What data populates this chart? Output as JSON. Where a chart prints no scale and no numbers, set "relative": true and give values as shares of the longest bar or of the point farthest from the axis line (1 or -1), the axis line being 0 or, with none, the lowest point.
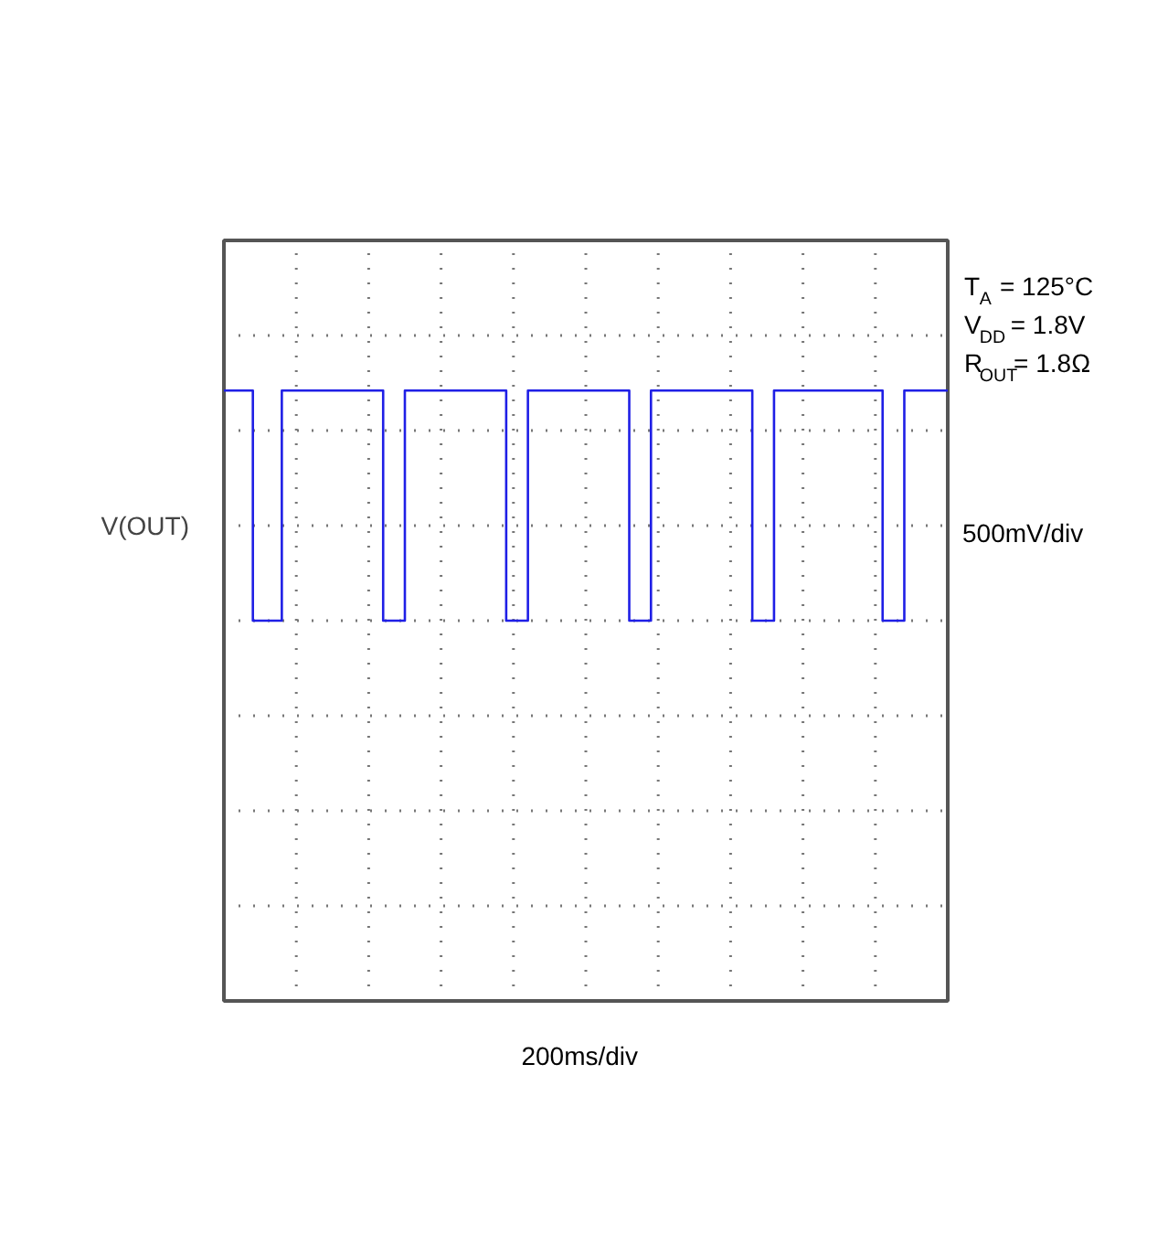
{
  "chart_data": {
    "type": "step",
    "relative": true,
    "ylabel": "V(OUT)",
    "grid": true,
    "categories": [
      null,
      null,
      null,
      null,
      null,
      null,
      null,
      null,
      null,
      null,
      null,
      null,
      null,
      null,
      null,
      null,
      null,
      null,
      null,
      null,
      null,
      null,
      null,
      null,
      null,
      null,
      null,
      null,
      null,
      null,
      null,
      null,
      null,
      null,
      null,
      null,
      null,
      null,
      null,
      null,
      null,
      null,
      null,
      null,
      null,
      null,
      null,
      null,
      null,
      null,
      null,
      null,
      null,
      null,
      null,
      null,
      null,
      null,
      null,
      null,
      null,
      null,
      null,
      null,
      null,
      null,
      null,
      null,
      null,
      null,
      null,
      null,
      null,
      null,
      null,
      null,
      null,
      null,
      null,
      null,
      null,
      null,
      null,
      null,
      null,
      null,
      null,
      null,
      null,
      null,
      null,
      null,
      null,
      null,
      null,
      null,
      null,
      null,
      null,
      null,
      null
    ],
    "series": [
      {
        "color": "#1f1fe6",
        "values": [
          1,
          1,
          1,
          1,
          0,
          0,
          0,
          0,
          1,
          1,
          1,
          1,
          1,
          1,
          1,
          1,
          1,
          1,
          1,
          1,
          1,
          1,
          0,
          0,
          0,
          1,
          1,
          1,
          1,
          1,
          1,
          1,
          1,
          1,
          1,
          1,
          1,
          1,
          1,
          0,
          0,
          0,
          1,
          1,
          1,
          1,
          1,
          1,
          1,
          1,
          1,
          1,
          1,
          1,
          1,
          1,
          0,
          0,
          0,
          1,
          1,
          1,
          1,
          1,
          1,
          1,
          1,
          1,
          1,
          1,
          1,
          1,
          1,
          0,
          0,
          0,
          1,
          1,
          1,
          1,
          1,
          1,
          1,
          1,
          1,
          1,
          1,
          1,
          1,
          1,
          1,
          0,
          0,
          0,
          1,
          1,
          1,
          1,
          1,
          1,
          1
        ]
      }
    ],
    "annotations": [
      "T$_{A}$ = 125°C",
      "V$_{DD}$ = 1.8V",
      "R$_{OUT}$= 1.8Ω",
      "500mV/div",
      "200ms/div"
    ]
  }
}
